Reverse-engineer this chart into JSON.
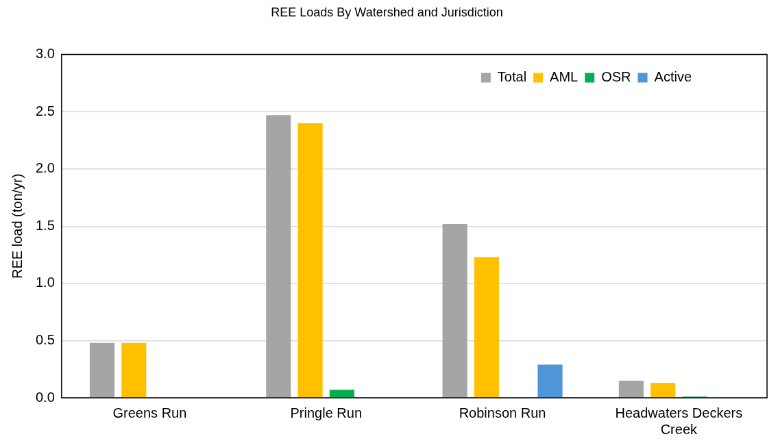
{
  "chart_data": {
    "type": "bar",
    "title": "REE Loads By Watershed and Jurisdiction",
    "ylabel": "REE load (ton/yr)",
    "categories": [
      "Greens Run",
      "Pringle Run",
      "Robinson Run",
      "Headwaters Deckers Creek"
    ],
    "series": [
      {
        "name": "Total",
        "color": "#a5a5a5",
        "values": [
          0.48,
          2.47,
          1.52,
          0.15
        ]
      },
      {
        "name": "AML",
        "color": "#ffc000",
        "values": [
          0.48,
          2.4,
          1.23,
          0.13
        ]
      },
      {
        "name": "OSR",
        "color": "#00b050",
        "values": [
          0,
          0.07,
          0,
          0.01
        ]
      },
      {
        "name": "Active",
        "color": "#4f96d9",
        "values": [
          0,
          0,
          0.29,
          0
        ]
      }
    ],
    "ylim": [
      0,
      3
    ],
    "yticks": [
      {
        "value": 0,
        "label": "0.0"
      },
      {
        "value": 0.5,
        "label": "0.5"
      },
      {
        "value": 1,
        "label": "1.0"
      },
      {
        "value": 1.5,
        "label": "1.5"
      },
      {
        "value": 2,
        "label": "2.0"
      },
      {
        "value": 2.5,
        "label": "2.5"
      },
      {
        "value": 3,
        "label": "3.0"
      }
    ],
    "grid": "y",
    "legend": "top right"
  }
}
